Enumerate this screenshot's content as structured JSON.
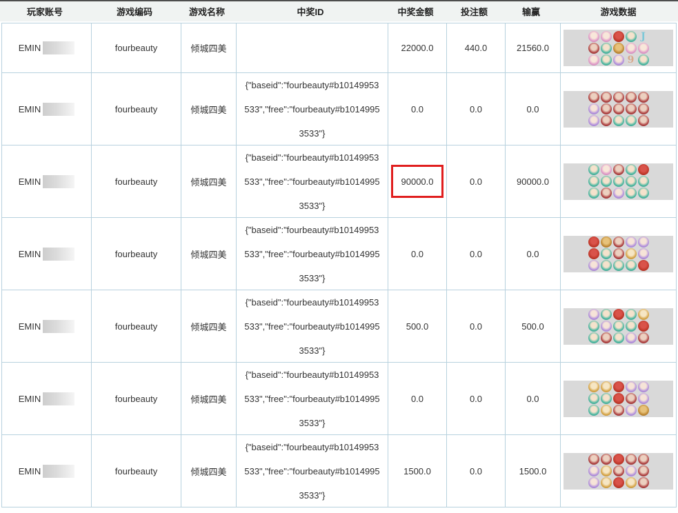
{
  "header": {
    "columns": [
      {
        "key": "account",
        "label": "玩家账号"
      },
      {
        "key": "game_code",
        "label": "游戏编码"
      },
      {
        "key": "game_name",
        "label": "游戏名称"
      },
      {
        "key": "win_id",
        "label": "中奖ID"
      },
      {
        "key": "win_amount",
        "label": "中奖金额"
      },
      {
        "key": "bet_amount",
        "label": "投注额"
      },
      {
        "key": "win_loss",
        "label": "输赢"
      },
      {
        "key": "game_data",
        "label": "游戏数据"
      }
    ]
  },
  "colors": {
    "grid_border": "#b7d1de",
    "header_bg": "#f0f3f2",
    "header_top_border": "#4d4d4d",
    "strip_bg": "#d9d9d9",
    "highlight_border": "#e01e1e"
  },
  "symbol_palette": {
    "bp": {
      "face": "#f8e7da",
      "ring": "#e09cc8",
      "edge": "#b06aa0"
    },
    "bt": {
      "face": "#f5e2cc",
      "ring": "#4fb8a2",
      "edge": "#2d8f7b"
    },
    "bv": {
      "face": "#f6e4d8",
      "ring": "#b493dc",
      "edge": "#8a63bd"
    },
    "bg": {
      "face": "#f6e6c4",
      "ring": "#d7a64b",
      "edge": "#a97b1e"
    },
    "br": {
      "face": "#ecd0c0",
      "ring": "#b04444",
      "edge": "#7c2727"
    },
    "ir": {
      "face": "#d9534a",
      "ring": "#c0392b",
      "edge": "#8e1f14"
    },
    "if": {
      "face": "#e7c27a",
      "ring": "#c08a35",
      "edge": "#8a5d1a"
    },
    "lJ": {
      "letter": "J",
      "ring": "#7ec8d8"
    },
    "l9": {
      "letter": "9",
      "ring": "#d8a88a"
    }
  },
  "rows": [
    {
      "account": "EMIN",
      "account_redacted": true,
      "game_code": "fourbeauty",
      "game_name": "倾城四美",
      "win_id": "",
      "win_amount": "22000.0",
      "bet_amount": "440.0",
      "win_loss": "21560.0",
      "win_amount_highlighted": false,
      "symbols": [
        "bp",
        "bp",
        "ir",
        "bt",
        "lJ",
        "br",
        "bt",
        "if",
        "bp",
        "bp",
        "bp",
        "bt",
        "bv",
        "l9",
        "bt"
      ]
    },
    {
      "account": "EMIN",
      "account_redacted": true,
      "game_code": "fourbeauty",
      "game_name": "倾城四美",
      "win_id": "{\"baseid\":\"fourbeauty#b10149953533\",\"free\":\"fourbeauty#b10149953533\"}",
      "win_amount": "0.0",
      "bet_amount": "0.0",
      "win_loss": "0.0",
      "win_amount_highlighted": false,
      "symbols": [
        "br",
        "br",
        "br",
        "br",
        "br",
        "bv",
        "br",
        "br",
        "br",
        "br",
        "bv",
        "br",
        "bt",
        "bt",
        "br"
      ]
    },
    {
      "account": "EMIN",
      "account_redacted": true,
      "game_code": "fourbeauty",
      "game_name": "倾城四美",
      "win_id": "{\"baseid\":\"fourbeauty#b10149953533\",\"free\":\"fourbeauty#b10149953533\"}",
      "win_amount": "90000.0",
      "bet_amount": "0.0",
      "win_loss": "90000.0",
      "win_amount_highlighted": true,
      "symbols": [
        "bt",
        "bp",
        "br",
        "bt",
        "ir",
        "bt",
        "bt",
        "bt",
        "bt",
        "bt",
        "bt",
        "br",
        "bv",
        "bt",
        "bt"
      ]
    },
    {
      "account": "EMIN",
      "account_redacted": true,
      "game_code": "fourbeauty",
      "game_name": "倾城四美",
      "win_id": "{\"baseid\":\"fourbeauty#b10149953533\",\"free\":\"fourbeauty#b10149953533\"}",
      "win_amount": "0.0",
      "bet_amount": "0.0",
      "win_loss": "0.0",
      "win_amount_highlighted": false,
      "symbols": [
        "ir",
        "if",
        "br",
        "bv",
        "bv",
        "ir",
        "bt",
        "br",
        "bg",
        "bv",
        "bv",
        "bt",
        "bt",
        "bt",
        "ir"
      ]
    },
    {
      "account": "EMIN",
      "account_redacted": true,
      "game_code": "fourbeauty",
      "game_name": "倾城四美",
      "win_id": "{\"baseid\":\"fourbeauty#b10149953533\",\"free\":\"fourbeauty#b10149953533\"}",
      "win_amount": "500.0",
      "bet_amount": "0.0",
      "win_loss": "500.0",
      "win_amount_highlighted": false,
      "symbols": [
        "bv",
        "bt",
        "ir",
        "bt",
        "bg",
        "bt",
        "bv",
        "bt",
        "bt",
        "ir",
        "bt",
        "br",
        "bt",
        "bv",
        "br"
      ]
    },
    {
      "account": "EMIN",
      "account_redacted": true,
      "game_code": "fourbeauty",
      "game_name": "倾城四美",
      "win_id": "{\"baseid\":\"fourbeauty#b10149953533\",\"free\":\"fourbeauty#b10149953533\"}",
      "win_amount": "0.0",
      "bet_amount": "0.0",
      "win_loss": "0.0",
      "win_amount_highlighted": false,
      "symbols": [
        "bg",
        "bg",
        "ir",
        "bv",
        "bv",
        "bt",
        "bt",
        "ir",
        "br",
        "bv",
        "bt",
        "bg",
        "br",
        "bv",
        "if"
      ]
    },
    {
      "account": "EMIN",
      "account_redacted": true,
      "game_code": "fourbeauty",
      "game_name": "倾城四美",
      "win_id": "{\"baseid\":\"fourbeauty#b10149953533\",\"free\":\"fourbeauty#b10149953533\"}",
      "win_amount": "1500.0",
      "bet_amount": "0.0",
      "win_loss": "1500.0",
      "win_amount_highlighted": false,
      "symbols": [
        "br",
        "br",
        "ir",
        "br",
        "br",
        "bv",
        "bg",
        "br",
        "bv",
        "br",
        "bv",
        "bg",
        "ir",
        "bg",
        "br"
      ]
    }
  ]
}
